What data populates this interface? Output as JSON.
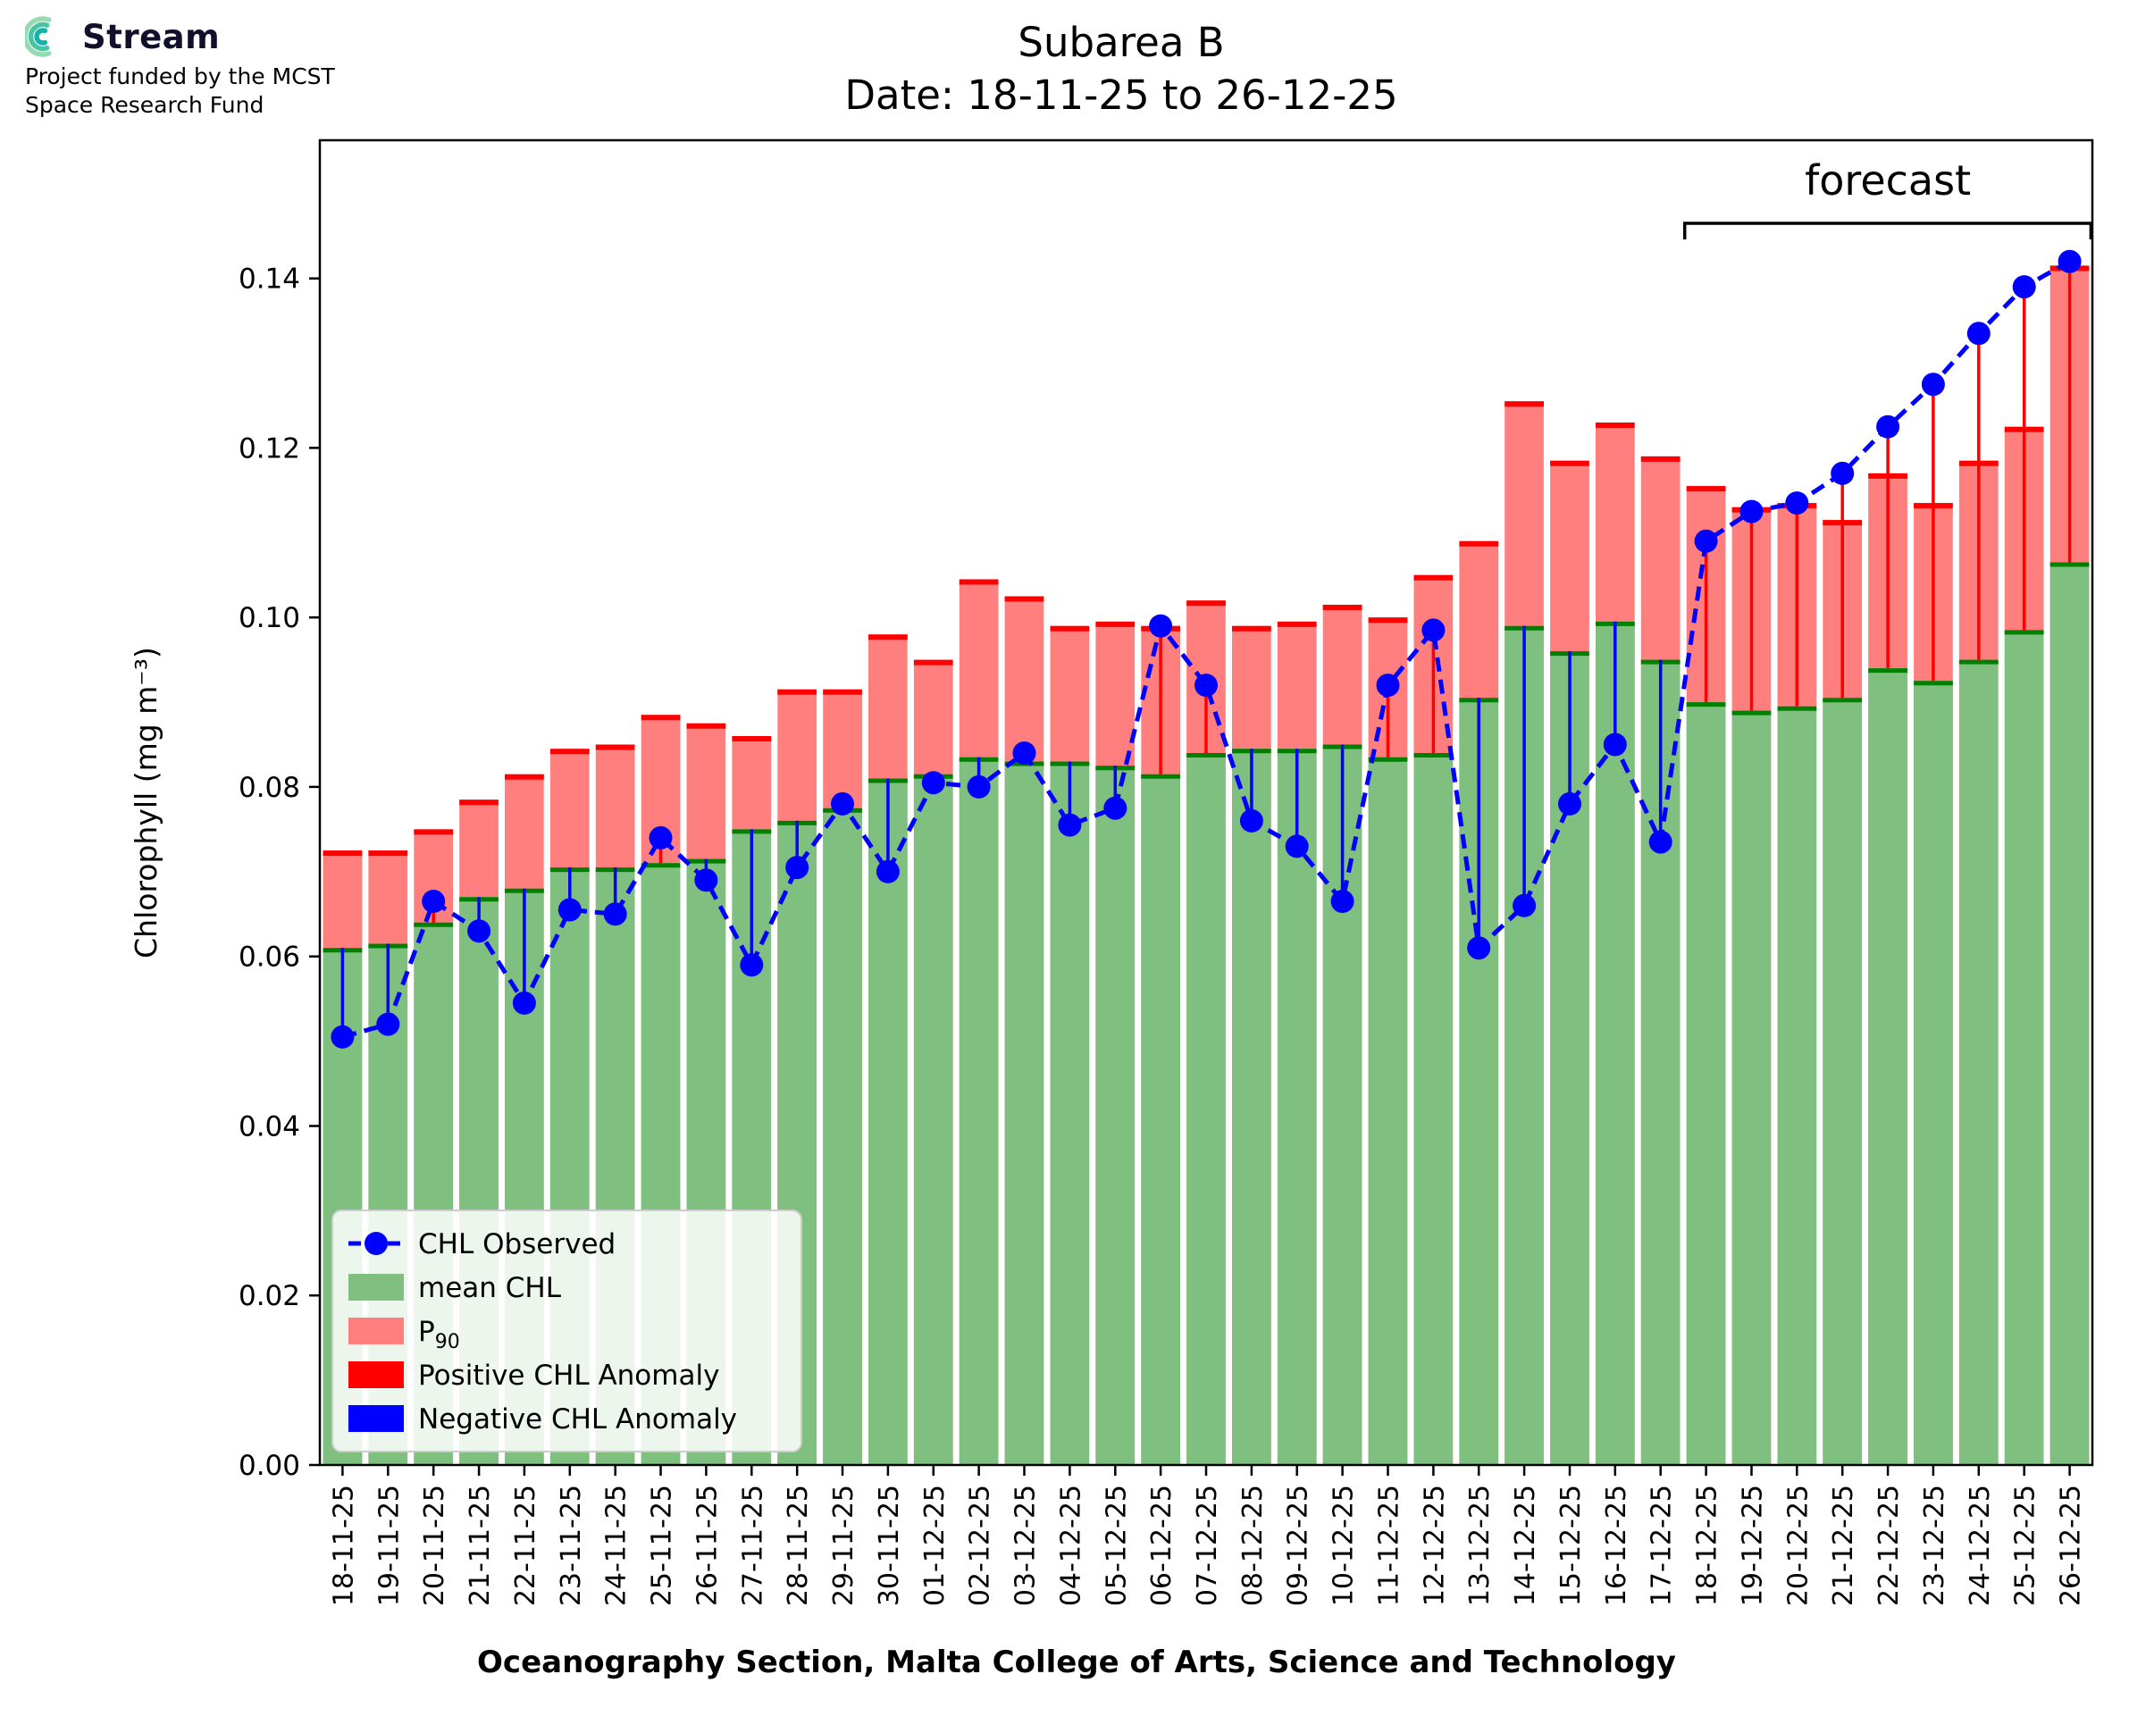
{
  "logo": {
    "brand": "Stream",
    "subtitle_line1": "Project funded by the MCST",
    "subtitle_line2": "Space Research Fund"
  },
  "title": {
    "line1": "Subarea B",
    "line2": "Date: 18-11-25 to 26-12-25"
  },
  "chart_data": {
    "type": "bar+line",
    "title": "Subarea B",
    "subtitle": "Date: 18-11-25 to 26-12-25",
    "xlabel": "Oceanography Section, Malta College of Arts, Science and Technology",
    "ylabel": "Chlorophyll (mg m⁻³)",
    "ylim": [
      0,
      0.1563
    ],
    "yticks": [
      0,
      0.02,
      0.04,
      0.06,
      0.08,
      0.1,
      0.12,
      0.14
    ],
    "forecast_label": "forecast",
    "forecast_start_index": 30,
    "categories": [
      "18-11-25",
      "19-11-25",
      "20-11-25",
      "21-11-25",
      "22-11-25",
      "23-11-25",
      "24-11-25",
      "25-11-25",
      "26-11-25",
      "27-11-25",
      "28-11-25",
      "29-11-25",
      "30-11-25",
      "01-12-25",
      "02-12-25",
      "03-12-25",
      "04-12-25",
      "05-12-25",
      "06-12-25",
      "07-12-25",
      "08-12-25",
      "09-12-25",
      "10-12-25",
      "11-12-25",
      "12-12-25",
      "13-12-25",
      "14-12-25",
      "15-12-25",
      "16-12-25",
      "17-12-25",
      "18-12-25",
      "19-12-25",
      "20-12-25",
      "21-12-25",
      "22-12-25",
      "23-12-25",
      "24-12-25",
      "25-12-25",
      "26-12-25"
    ],
    "series": [
      {
        "name": "mean CHL",
        "values": [
          0.061,
          0.0615,
          0.064,
          0.067,
          0.068,
          0.0705,
          0.0705,
          0.071,
          0.0715,
          0.075,
          0.076,
          0.0775,
          0.081,
          0.0815,
          0.0835,
          0.083,
          0.083,
          0.0825,
          0.0815,
          0.084,
          0.0845,
          0.0845,
          0.085,
          0.0835,
          0.084,
          0.0905,
          0.099,
          0.096,
          0.0995,
          0.095,
          0.09,
          0.089,
          0.0895,
          0.0905,
          0.094,
          0.0925,
          0.095,
          0.0985,
          0.1065
        ]
      },
      {
        "name": "P90",
        "values": [
          0.0725,
          0.0725,
          0.075,
          0.0785,
          0.0815,
          0.0845,
          0.085,
          0.0885,
          0.0875,
          0.086,
          0.0915,
          0.0915,
          0.098,
          0.095,
          0.1045,
          0.1025,
          0.099,
          0.0995,
          0.099,
          0.102,
          0.099,
          0.0995,
          0.1015,
          0.1,
          0.105,
          0.109,
          0.1255,
          0.1185,
          0.123,
          0.119,
          0.1155,
          0.113,
          0.1135,
          0.1115,
          0.117,
          0.1135,
          0.1185,
          0.1225,
          0.1415
        ]
      },
      {
        "name": "CHL Observed",
        "values": [
          0.0505,
          0.052,
          0.0665,
          0.063,
          0.0545,
          0.0655,
          0.065,
          0.074,
          0.069,
          0.059,
          0.0705,
          0.078,
          0.07,
          0.0805,
          0.08,
          0.084,
          0.0755,
          0.0775,
          0.099,
          0.092,
          0.076,
          0.073,
          0.0665,
          0.092,
          0.0985,
          0.061,
          0.066,
          0.078,
          0.085,
          0.0735,
          0.109,
          0.1125,
          0.1135,
          0.117,
          0.1225,
          0.1275,
          0.1335,
          0.139,
          0.142
        ]
      }
    ],
    "legend": [
      {
        "label": "CHL Observed",
        "type": "line"
      },
      {
        "label": "mean CHL",
        "type": "patch",
        "color_key": "mean_fill"
      },
      {
        "label": "P",
        "sub": "90",
        "type": "patch",
        "color_key": "p90_fill"
      },
      {
        "label": "Positive CHL Anomaly",
        "type": "patch",
        "color_key": "pos_anomaly"
      },
      {
        "label": "Negative CHL Anomaly",
        "type": "patch",
        "color_key": "neg_anomaly"
      }
    ],
    "colors": {
      "observed": "#0000ff",
      "mean_fill": "#7fbf7f",
      "mean_edge": "#008000",
      "p90_fill": "#ff7f7f",
      "p90_edge": "#ff0000",
      "pos_anomaly": "#ff0000",
      "neg_anomaly": "#0000ff",
      "axis": "#000000"
    }
  }
}
